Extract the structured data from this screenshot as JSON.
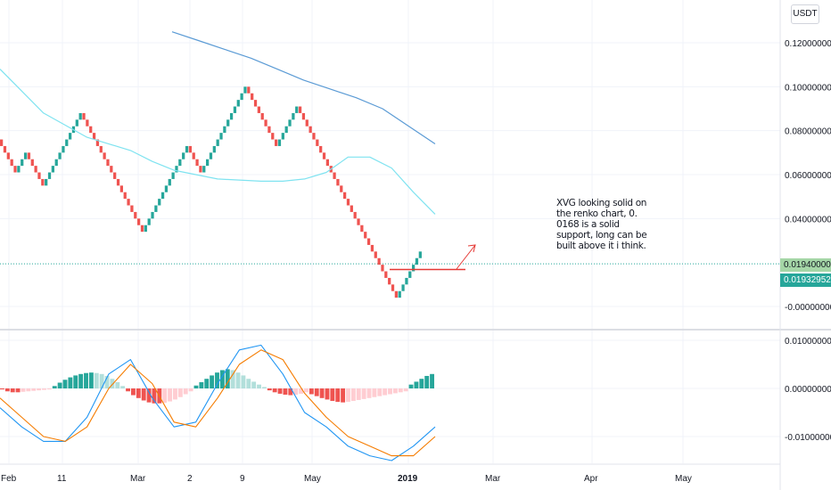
{
  "currency_label": "USDT",
  "note_lines": [
    "XVG looking solid on",
    "the renko chart, 0.",
    "0168 is a solid",
    "support, long can be",
    "built above it i think."
  ],
  "price_tags": {
    "last": "0.01940000",
    "close": "0.01932952"
  },
  "colors": {
    "up": "#26a69a",
    "down": "#ef5350",
    "ma_slow": "#5b9bd5",
    "ma_fast": "#7fe3f0",
    "macd": "#2196f3",
    "signal": "#f57c00",
    "hist_up_strong": "#26a69a",
    "hist_up_weak": "#b2dfdb",
    "hist_down_strong": "#ef5350",
    "hist_down_weak": "#ffcdd2",
    "support": "#e53935",
    "arrow": "#e53935"
  },
  "chart_data": [
    {
      "type": "renko",
      "title": "",
      "x_tick_labels": [
        "Feb",
        "11",
        "Mar",
        "2",
        "9",
        "May",
        "2019",
        "Mar",
        "Apr",
        "May"
      ],
      "y_tick_labels": [
        "0.12000000",
        "0.10000000",
        "0.08000000",
        "0.06000000",
        "0.04000000",
        "-0.00000000"
      ],
      "ylim": [
        -0.01,
        0.135
      ],
      "brick_size": 0.003,
      "brick_sequence": [
        0.076,
        -1,
        -1,
        -1,
        -1,
        -1,
        1,
        1,
        1,
        -1,
        -1,
        -1,
        -1,
        -1,
        1,
        1,
        1,
        1,
        1,
        1,
        1,
        1,
        1,
        1,
        1,
        -1,
        -1,
        -1,
        -1,
        -1,
        -1,
        -1,
        -1,
        -1,
        -1,
        -1,
        -1,
        -1,
        -1,
        -1,
        -1,
        -1,
        -1,
        1,
        1,
        1,
        1,
        1,
        1,
        1,
        1,
        1,
        1,
        1,
        1,
        1,
        -1,
        -1,
        -1,
        -1,
        1,
        1,
        1,
        1,
        1,
        1,
        1,
        1,
        1,
        1,
        1,
        1,
        1,
        -1,
        -1,
        -1,
        -1,
        -1,
        -1,
        -1,
        -1,
        -1,
        1,
        1,
        1,
        1,
        1,
        1,
        -1,
        -1,
        -1,
        -1,
        -1,
        -1,
        -1,
        -1,
        -1,
        -1,
        -1,
        -1,
        -1,
        -1,
        -1,
        -1,
        -1,
        -1,
        -1,
        -1,
        -1,
        -1,
        -1,
        -1,
        -1,
        -1,
        -1,
        -1,
        -1,
        1,
        1,
        1,
        1,
        1,
        1,
        1
      ],
      "ma_slow": {
        "x": [
          0.0,
          0.1,
          0.2,
          0.3,
          0.4,
          0.5,
          0.6,
          0.7,
          0.8,
          0.9,
          1.0
        ],
        "y": [
          0.125,
          0.121,
          0.117,
          0.113,
          0.108,
          0.103,
          0.099,
          0.095,
          0.09,
          0.082,
          0.074
        ]
      },
      "ma_fast": {
        "x": [
          0.0,
          0.1,
          0.2,
          0.3,
          0.35,
          0.4,
          0.5,
          0.6,
          0.65,
          0.7,
          0.75,
          0.8,
          0.85,
          0.9,
          0.95,
          1.0
        ],
        "y": [
          0.108,
          0.088,
          0.077,
          0.071,
          0.066,
          0.062,
          0.058,
          0.057,
          0.057,
          0.058,
          0.061,
          0.068,
          0.068,
          0.063,
          0.052,
          0.042
        ]
      },
      "support_level": 0.0168,
      "last_price": 0.0194,
      "close_price": 0.01932952
    },
    {
      "type": "macd",
      "y_tick_labels": [
        "0.01000000",
        "0.00000000",
        "-0.01000000"
      ],
      "ylim": [
        -0.016,
        0.011
      ],
      "histogram": [
        -0.0002,
        -0.0006,
        -0.0008,
        -0.0008,
        -0.0007,
        -0.0006,
        -0.0005,
        -0.0004,
        -0.0003,
        -0.0002,
        0.0005,
        0.0012,
        0.0018,
        0.0023,
        0.0027,
        0.003,
        0.0032,
        0.0033,
        0.0032,
        0.003,
        0.0026,
        0.002,
        0.0013,
        0.0005,
        -0.0006,
        -0.0014,
        -0.002,
        -0.0025,
        -0.0029,
        -0.0031,
        -0.0031,
        -0.003,
        -0.0027,
        -0.0023,
        -0.0018,
        -0.0012,
        -0.0006,
        0.0006,
        0.0013,
        0.002,
        0.0027,
        0.0033,
        0.0038,
        0.004,
        0.0038,
        0.0033,
        0.0027,
        0.002,
        0.0014,
        0.0008,
        0.0003,
        -0.0004,
        -0.0008,
        -0.0011,
        -0.0013,
        -0.0014,
        -0.0013,
        -0.0011,
        -0.0008,
        -0.0012,
        -0.0016,
        -0.002,
        -0.0023,
        -0.0026,
        -0.0028,
        -0.0029,
        -0.0028,
        -0.0026,
        -0.0024,
        -0.0022,
        -0.002,
        -0.0018,
        -0.0016,
        -0.0014,
        -0.0012,
        -0.001,
        -0.0008,
        -0.0006,
        0.0008,
        0.0014,
        0.002,
        0.0026,
        0.003
      ],
      "macd_line": {
        "x": [
          0.0,
          0.05,
          0.1,
          0.15,
          0.2,
          0.25,
          0.3,
          0.35,
          0.4,
          0.45,
          0.5,
          0.55,
          0.6,
          0.65,
          0.7,
          0.75,
          0.8,
          0.85,
          0.9,
          0.95,
          1.0
        ],
        "y": [
          -0.004,
          -0.008,
          -0.011,
          -0.011,
          -0.006,
          0.003,
          0.006,
          -0.002,
          -0.008,
          -0.007,
          0.001,
          0.008,
          0.009,
          0.003,
          -0.005,
          -0.008,
          -0.012,
          -0.014,
          -0.015,
          -0.012,
          -0.008
        ]
      },
      "signal_line": {
        "x": [
          0.0,
          0.05,
          0.1,
          0.15,
          0.2,
          0.25,
          0.3,
          0.35,
          0.4,
          0.45,
          0.5,
          0.55,
          0.6,
          0.65,
          0.7,
          0.75,
          0.8,
          0.85,
          0.9,
          0.95,
          1.0
        ],
        "y": [
          -0.002,
          -0.006,
          -0.01,
          -0.011,
          -0.008,
          0.0,
          0.005,
          0.001,
          -0.007,
          -0.008,
          -0.002,
          0.005,
          0.008,
          0.006,
          -0.001,
          -0.006,
          -0.01,
          -0.012,
          -0.014,
          -0.014,
          -0.01
        ]
      }
    }
  ]
}
